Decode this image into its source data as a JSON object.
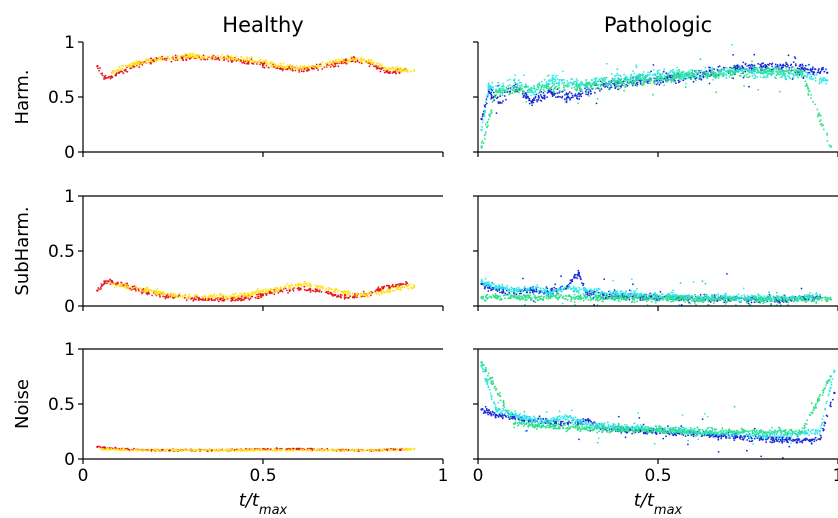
{
  "colors": {
    "red": "#e8141c",
    "yellow": "#ffe21a",
    "cyan": "#31e8e8",
    "blue": "#1a2ad8",
    "green": "#2ee08a"
  },
  "chart_data": [
    {
      "type": "scatter",
      "panel": "harm-healthy",
      "title": "Healthy",
      "ylabel": "Harm.",
      "xlabel": "",
      "xlim": [
        0,
        1
      ],
      "ylim": [
        0,
        1
      ],
      "yticks": [
        "0",
        "0.5",
        "1"
      ],
      "xticks": [],
      "series": [
        {
          "color": "red",
          "x": [
            0.04,
            0.06,
            0.08,
            0.1,
            0.14,
            0.2,
            0.3,
            0.4,
            0.5,
            0.55,
            0.6,
            0.65,
            0.7,
            0.75,
            0.8,
            0.85,
            0.9
          ],
          "y": [
            0.78,
            0.68,
            0.68,
            0.72,
            0.78,
            0.84,
            0.86,
            0.85,
            0.8,
            0.76,
            0.75,
            0.77,
            0.8,
            0.84,
            0.8,
            0.72,
            0.74
          ]
        },
        {
          "color": "yellow",
          "x": [
            0.08,
            0.12,
            0.2,
            0.3,
            0.4,
            0.5,
            0.55,
            0.6,
            0.65,
            0.7,
            0.78,
            0.85,
            0.9,
            0.92
          ],
          "y": [
            0.72,
            0.78,
            0.84,
            0.87,
            0.86,
            0.82,
            0.78,
            0.76,
            0.78,
            0.82,
            0.84,
            0.76,
            0.74,
            0.74
          ]
        }
      ]
    },
    {
      "type": "scatter",
      "panel": "harm-patho",
      "title": "Pathologic",
      "ylabel": "",
      "xlabel": "",
      "xlim": [
        0,
        1
      ],
      "ylim": [
        0,
        1
      ],
      "yticks": [],
      "xticks": [],
      "series": [
        {
          "color": "blue",
          "x": [
            0.01,
            0.03,
            0.06,
            0.1,
            0.15,
            0.2,
            0.25,
            0.3,
            0.35,
            0.45,
            0.55,
            0.65,
            0.72,
            0.8,
            0.9,
            0.97
          ],
          "y": [
            0.3,
            0.55,
            0.45,
            0.6,
            0.45,
            0.55,
            0.5,
            0.55,
            0.6,
            0.65,
            0.68,
            0.72,
            0.76,
            0.78,
            0.76,
            0.72
          ]
        },
        {
          "color": "cyan",
          "x": [
            0.01,
            0.03,
            0.06,
            0.1,
            0.15,
            0.2,
            0.25,
            0.3,
            0.35,
            0.45,
            0.55,
            0.65,
            0.72,
            0.8,
            0.9,
            0.97
          ],
          "y": [
            0.2,
            0.6,
            0.55,
            0.65,
            0.55,
            0.65,
            0.62,
            0.62,
            0.65,
            0.68,
            0.7,
            0.72,
            0.74,
            0.72,
            0.7,
            0.65
          ]
        },
        {
          "color": "green",
          "x": [
            0.01,
            0.05,
            0.1,
            0.2,
            0.3,
            0.4,
            0.5,
            0.6,
            0.7,
            0.8,
            0.9,
            0.98
          ],
          "y": [
            0.05,
            0.55,
            0.56,
            0.58,
            0.6,
            0.63,
            0.66,
            0.7,
            0.72,
            0.73,
            0.73,
            0.05
          ]
        }
      ]
    },
    {
      "type": "scatter",
      "panel": "subharm-healthy",
      "title": "",
      "ylabel": "SubHarm.",
      "xlabel": "",
      "xlim": [
        0,
        1
      ],
      "ylim": [
        0,
        1
      ],
      "yticks": [
        "0",
        "0.5",
        "1"
      ],
      "xticks": [],
      "series": [
        {
          "color": "red",
          "x": [
            0.04,
            0.06,
            0.08,
            0.12,
            0.18,
            0.25,
            0.35,
            0.45,
            0.5,
            0.55,
            0.6,
            0.65,
            0.7,
            0.75,
            0.8,
            0.85,
            0.9
          ],
          "y": [
            0.14,
            0.22,
            0.22,
            0.18,
            0.12,
            0.08,
            0.06,
            0.07,
            0.1,
            0.14,
            0.16,
            0.14,
            0.1,
            0.08,
            0.12,
            0.18,
            0.2
          ]
        },
        {
          "color": "yellow",
          "x": [
            0.08,
            0.15,
            0.25,
            0.35,
            0.45,
            0.55,
            0.6,
            0.65,
            0.7,
            0.78,
            0.85,
            0.9,
            0.92
          ],
          "y": [
            0.2,
            0.16,
            0.1,
            0.08,
            0.1,
            0.16,
            0.2,
            0.18,
            0.14,
            0.1,
            0.14,
            0.18,
            0.18
          ]
        }
      ]
    },
    {
      "type": "scatter",
      "panel": "subharm-patho",
      "title": "",
      "ylabel": "",
      "xlabel": "",
      "xlim": [
        0,
        1
      ],
      "ylim": [
        0,
        1
      ],
      "yticks": [],
      "xticks": [],
      "series": [
        {
          "color": "blue",
          "x": [
            0.01,
            0.05,
            0.1,
            0.15,
            0.2,
            0.25,
            0.28,
            0.3,
            0.35,
            0.45,
            0.55,
            0.65,
            0.75,
            0.85,
            0.95
          ],
          "y": [
            0.2,
            0.15,
            0.12,
            0.15,
            0.12,
            0.18,
            0.3,
            0.12,
            0.1,
            0.08,
            0.07,
            0.07,
            0.06,
            0.06,
            0.08
          ]
        },
        {
          "color": "cyan",
          "x": [
            0.01,
            0.05,
            0.1,
            0.15,
            0.2,
            0.25,
            0.3,
            0.35,
            0.45,
            0.55,
            0.65,
            0.75,
            0.85,
            0.95
          ],
          "y": [
            0.22,
            0.18,
            0.14,
            0.16,
            0.12,
            0.16,
            0.14,
            0.12,
            0.1,
            0.08,
            0.08,
            0.07,
            0.07,
            0.1
          ]
        },
        {
          "color": "green",
          "x": [
            0.01,
            0.1,
            0.2,
            0.3,
            0.4,
            0.5,
            0.6,
            0.7,
            0.8,
            0.9,
            0.98
          ],
          "y": [
            0.08,
            0.08,
            0.08,
            0.08,
            0.07,
            0.07,
            0.06,
            0.06,
            0.06,
            0.06,
            0.06
          ]
        }
      ]
    },
    {
      "type": "scatter",
      "panel": "noise-healthy",
      "title": "",
      "ylabel": "Noise",
      "xlabel": "t/t_max",
      "xlim": [
        0,
        1
      ],
      "ylim": [
        0,
        1
      ],
      "yticks": [
        "0",
        "0.5",
        "1"
      ],
      "xticks": [
        "0",
        "0.5",
        "1"
      ],
      "series": [
        {
          "color": "red",
          "x": [
            0.04,
            0.1,
            0.2,
            0.3,
            0.4,
            0.5,
            0.6,
            0.7,
            0.8,
            0.9
          ],
          "y": [
            0.11,
            0.09,
            0.08,
            0.08,
            0.08,
            0.09,
            0.09,
            0.08,
            0.08,
            0.09
          ]
        },
        {
          "color": "yellow",
          "x": [
            0.05,
            0.15,
            0.25,
            0.35,
            0.45,
            0.55,
            0.65,
            0.75,
            0.85,
            0.92
          ],
          "y": [
            0.09,
            0.08,
            0.08,
            0.08,
            0.08,
            0.08,
            0.08,
            0.08,
            0.08,
            0.09
          ]
        }
      ]
    },
    {
      "type": "scatter",
      "panel": "noise-patho",
      "title": "",
      "ylabel": "",
      "xlabel": "t/t_max",
      "xlim": [
        0,
        1
      ],
      "ylim": [
        0,
        1
      ],
      "yticks": [],
      "xticks": [
        "0",
        "0.5",
        "1"
      ],
      "series": [
        {
          "color": "blue",
          "x": [
            0.01,
            0.05,
            0.1,
            0.15,
            0.2,
            0.25,
            0.3,
            0.35,
            0.45,
            0.55,
            0.65,
            0.72,
            0.8,
            0.88,
            0.95,
            0.99
          ],
          "y": [
            0.45,
            0.4,
            0.38,
            0.35,
            0.34,
            0.32,
            0.35,
            0.28,
            0.26,
            0.24,
            0.22,
            0.2,
            0.18,
            0.17,
            0.18,
            0.6
          ]
        },
        {
          "color": "cyan",
          "x": [
            0.01,
            0.05,
            0.1,
            0.15,
            0.2,
            0.25,
            0.3,
            0.35,
            0.45,
            0.55,
            0.65,
            0.75,
            0.85,
            0.95,
            0.99
          ],
          "y": [
            0.85,
            0.45,
            0.4,
            0.36,
            0.34,
            0.38,
            0.32,
            0.3,
            0.28,
            0.26,
            0.24,
            0.22,
            0.22,
            0.25,
            0.8
          ]
        },
        {
          "color": "green",
          "x": [
            0.01,
            0.1,
            0.2,
            0.3,
            0.4,
            0.5,
            0.6,
            0.7,
            0.8,
            0.9,
            0.98
          ],
          "y": [
            0.88,
            0.32,
            0.3,
            0.28,
            0.27,
            0.26,
            0.25,
            0.25,
            0.24,
            0.25,
            0.75
          ]
        }
      ]
    }
  ]
}
